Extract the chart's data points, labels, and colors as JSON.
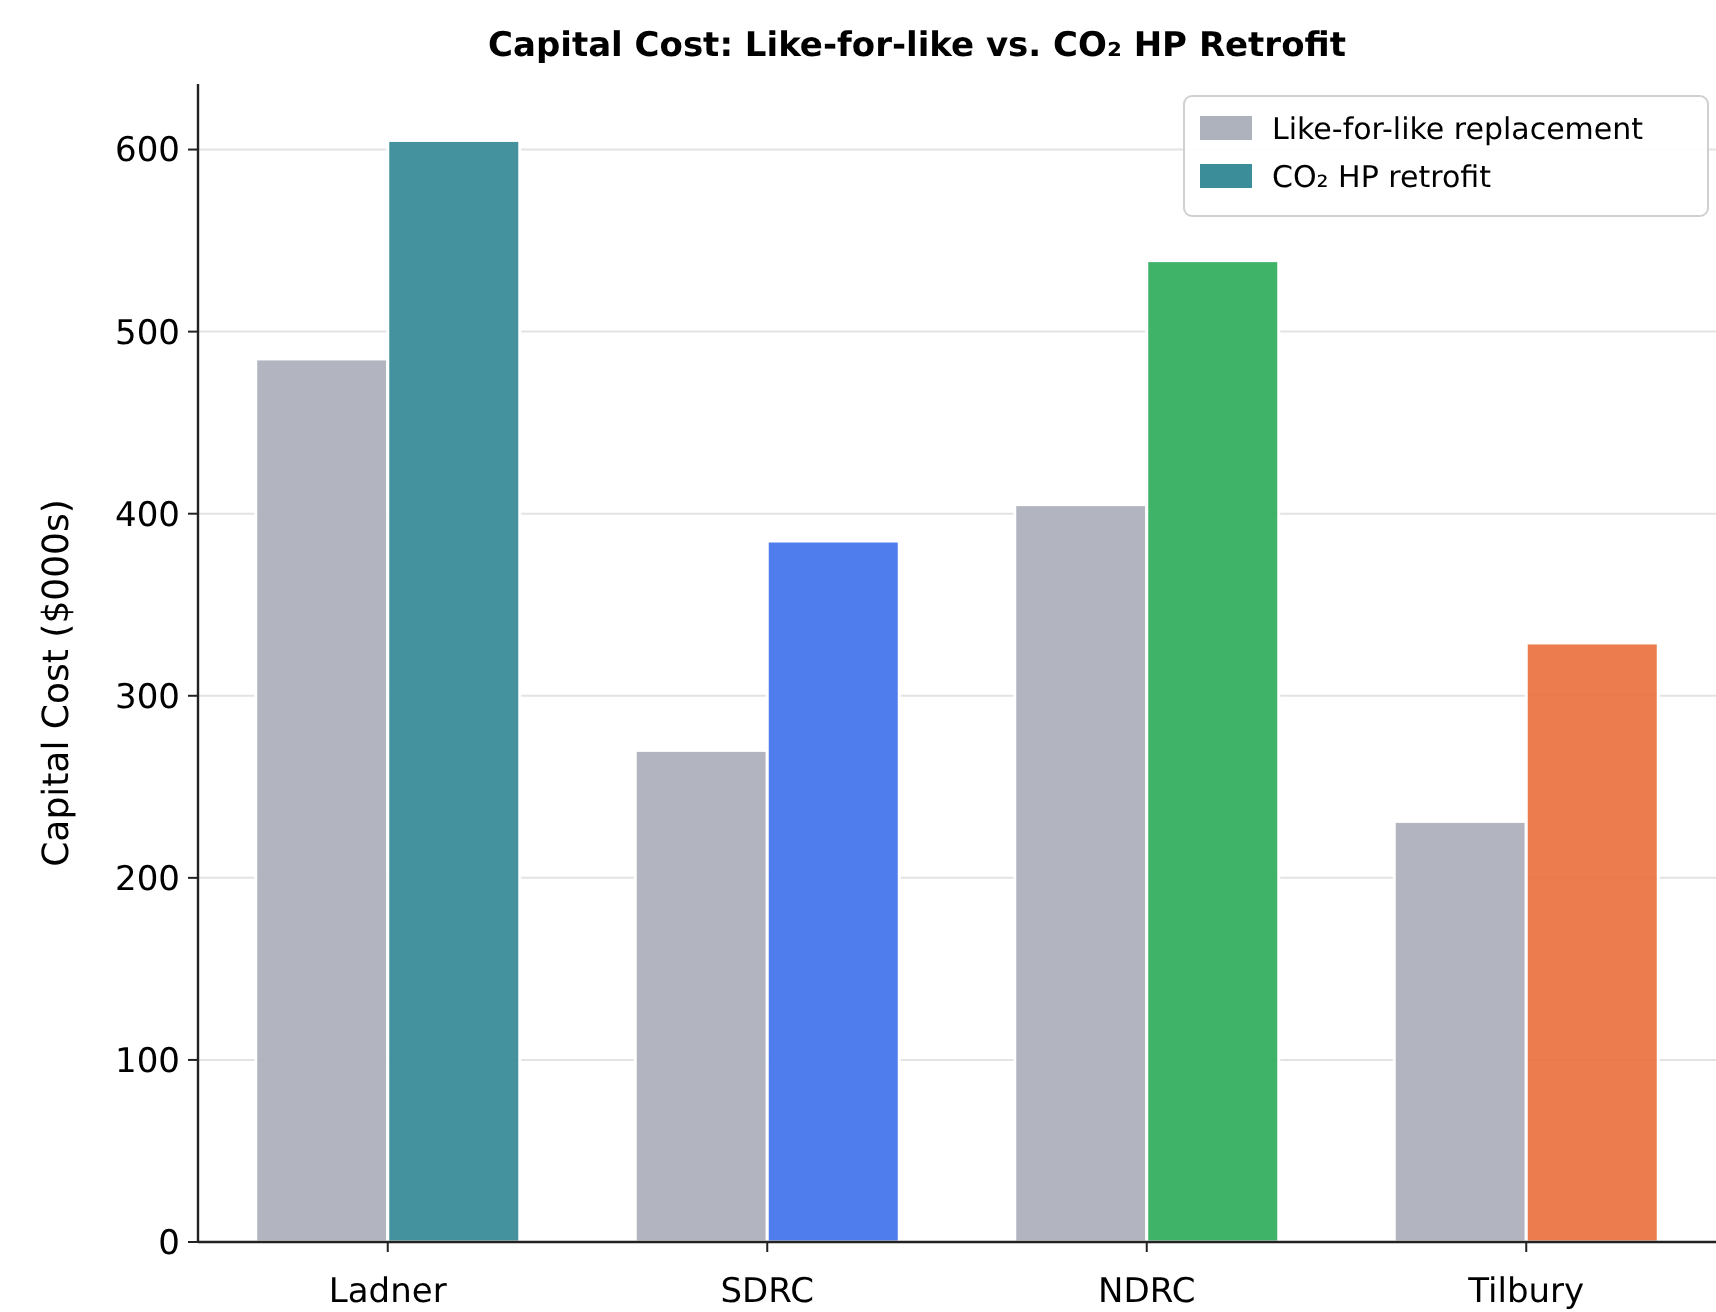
{
  "chart_data": {
    "type": "bar",
    "title": "Capital Cost: Like-for-like vs. CO₂ HP Retrofit",
    "ylabel": "Capital Cost ($000s)",
    "categories": [
      "Ladner",
      "SDRC",
      "NDRC",
      "Tilbury"
    ],
    "series": [
      {
        "name": "Like-for-like replacement",
        "color": "#aeb2bd",
        "values": [
          485,
          270,
          405,
          231
        ]
      },
      {
        "name": "CO₂ HP retrofit",
        "color": "#3a8d99",
        "colors": [
          "#3a8d99",
          "#4677ee",
          "#35b062",
          "#ec7444"
        ],
        "values": [
          605,
          385,
          539,
          329
        ]
      }
    ],
    "ylim": [
      0,
      636
    ],
    "yticks": [
      0,
      100,
      200,
      300,
      400,
      500,
      600
    ],
    "grid": "y",
    "legend": "top right"
  }
}
